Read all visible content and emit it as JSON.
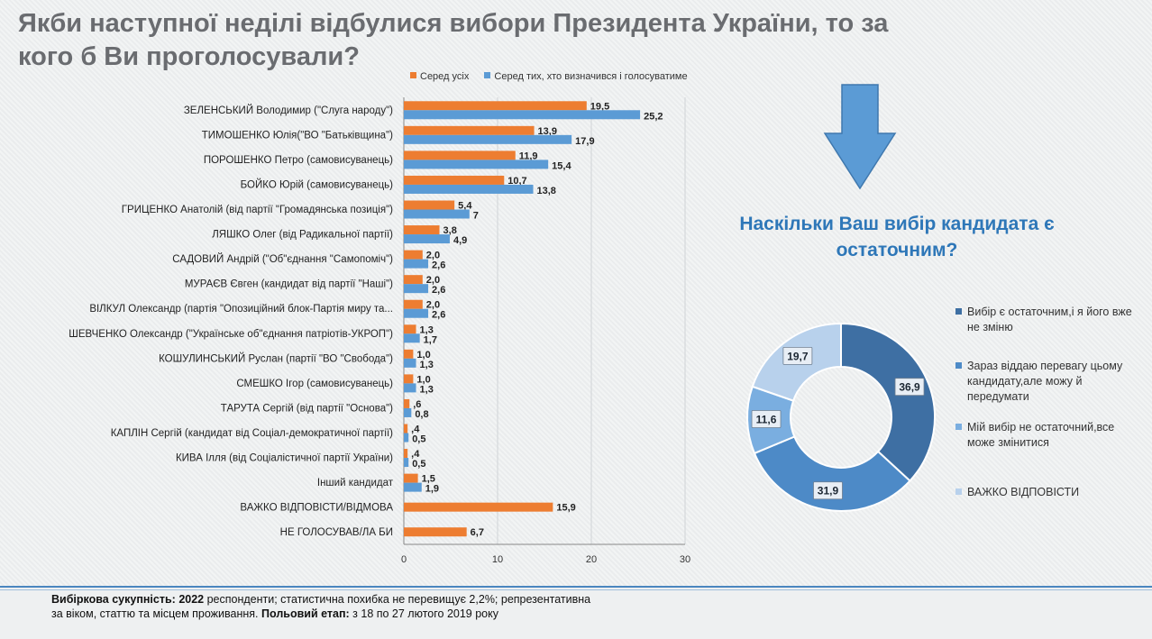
{
  "header": {
    "title_line1": "Якби наступної неділі відбулися вибори Президента України, то за",
    "title_line2": "кого б Ви проголосували?"
  },
  "legend": {
    "all_label": "Серед усіх",
    "decided_label": "Серед тих, хто визначився і голосуватиме"
  },
  "colors": {
    "all": "#ed7d31",
    "decided": "#5b9bd5",
    "donut": [
      "#3e6fa3",
      "#4d8ac7",
      "#7aaee0",
      "#b8d1ec"
    ],
    "title": "#6a6c70",
    "question": "#2e77b8"
  },
  "chart_data": {
    "type": "bar",
    "orientation": "horizontal",
    "categories": [
      "ЗЕЛЕНСЬКИЙ Володимир (\"Слуга народу\")",
      "ТИМОШЕНКО Юлія(\"ВО \"Батьківщина\")",
      "ПОРОШЕНКО Петро (самовисуванець)",
      "БОЙКО Юрій (самовисуванець)",
      "ГРИЦЕНКО Анатолій (від партії \"Громадянська позиція\")",
      "ЛЯШКО Олег (від Радикальної партії)",
      "САДОВИЙ Андрій (\"Об\"єднання \"Самопоміч\")",
      "МУРАЄВ Євген (кандидат від партії \"Наші\")",
      "ВІЛКУЛ Олександр (партія \"Опозиційний блок-Партія миру та...",
      "ШЕВЧЕНКО Олександр (\"Українське об\"єднання патріотів-УКРОП\")",
      "КОШУЛИНСЬКИЙ Руслан (партії \"ВО \"Свобода\")",
      "СМЕШКО Ігор (самовисуванець)",
      "ТАРУТА Сергій (від партії \"Основа\")",
      "КАПЛІН Сергій (кандидат від Соціал-демократичної партії)",
      "КИВА Ілля (від Соціалістичної партії України)",
      "Інший кандидат",
      "ВАЖКО ВІДПОВІСТИ/ВІДМОВА",
      "НЕ ГОЛОСУВАВ/ЛА БИ"
    ],
    "series": [
      {
        "name": "Серед усіх",
        "values": [
          19.5,
          13.9,
          11.9,
          10.7,
          5.4,
          3.8,
          2.0,
          2.0,
          2.0,
          1.3,
          1.0,
          1.0,
          0.6,
          0.4,
          0.4,
          1.5,
          15.9,
          6.7
        ],
        "labels": [
          "19,5",
          "13,9",
          "11,9",
          "10,7",
          "5,4",
          "3,8",
          "2,0",
          "2,0",
          "2,0",
          "1,3",
          "1,0",
          "1,0",
          ",6",
          ",4",
          ",4",
          "1,5",
          "15,9",
          "6,7"
        ]
      },
      {
        "name": "Серед тих, хто визначився і голосуватиме",
        "values": [
          25.2,
          17.9,
          15.4,
          13.8,
          7,
          4.9,
          2.6,
          2.6,
          2.6,
          1.7,
          1.3,
          1.3,
          0.8,
          0.5,
          0.5,
          1.9,
          null,
          null
        ],
        "labels": [
          "25,2",
          "17,9",
          "15,4",
          "13,8",
          "7",
          "4,9",
          "2,6",
          "2,6",
          "2,6",
          "1,7",
          "1,3",
          "1,3",
          "0,8",
          "0,5",
          "0,5",
          "1,9",
          "",
          ""
        ]
      }
    ],
    "xlim": [
      0,
      30
    ],
    "xticks": [
      "0",
      "10",
      "20",
      "30"
    ]
  },
  "donut_chart": {
    "type": "donut",
    "question": "Наскільки Ваш вибір кандидата є остаточним?",
    "slices": [
      {
        "name": "Вибір є остаточним,і я його вже не зміню",
        "value": 36.9,
        "label": "36,9"
      },
      {
        "name": "Зараз віддаю перевагу цьому кандидату,але можу й передумати",
        "value": 31.9,
        "label": "31,9"
      },
      {
        "name": "Мій вибір не остаточний,все може змінитися",
        "value": 11.6,
        "label": "11,6"
      },
      {
        "name": "ВАЖКО ВІДПОВІСТИ",
        "value": 19.7,
        "label": "19,7"
      }
    ]
  },
  "footer": {
    "sample_label": "Вибіркова сукупність:",
    "sample_count": "2022",
    "sample_text": " респонденти; статистична похибка не перевищує 2,2%; репрезентативна за віком, статтю та місцем проживання. ",
    "field_label": "Польовий етап:",
    "field_text": " з 18 по 27 лютого 2019 року"
  }
}
